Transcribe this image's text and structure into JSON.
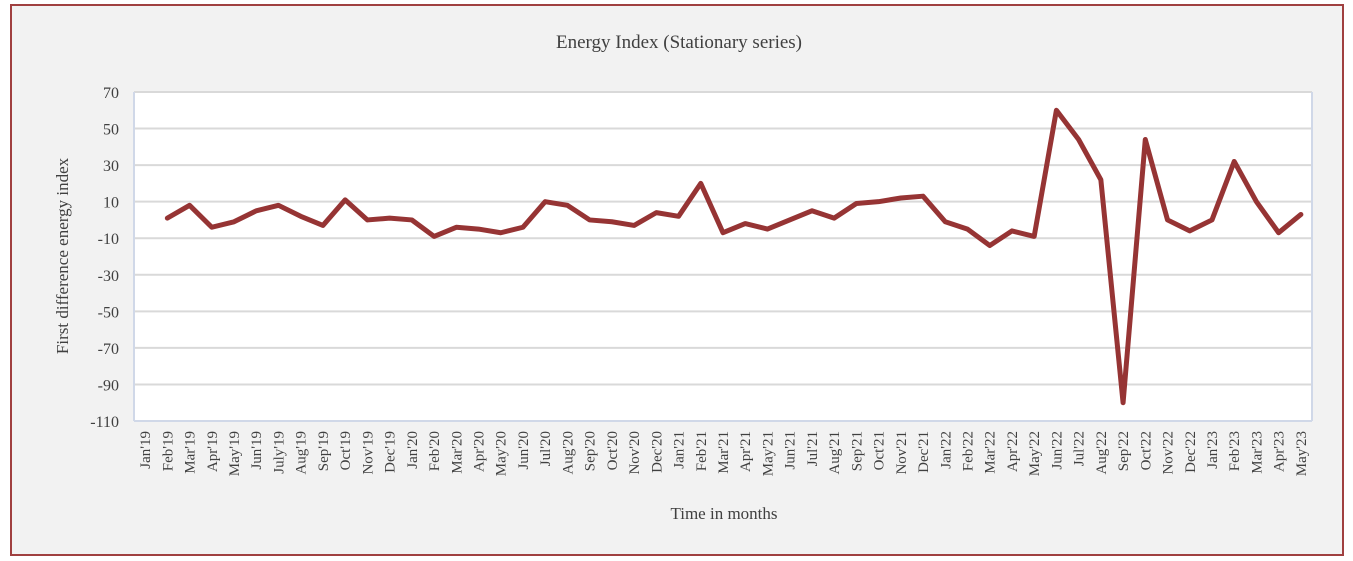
{
  "colors": {
    "line": "#963434",
    "frame_border": "#a04040",
    "plot_background": "#ffffff",
    "chart_background": "#f2f2f2",
    "gridline": "#d9d9d9",
    "axis_line": "#d0d8e8"
  },
  "chart_data": {
    "type": "line",
    "title": "Energy Index (Stationary series)",
    "xlabel": "Time in months",
    "ylabel": "First difference energy index",
    "ylim": [
      -110,
      70
    ],
    "yticks": [
      70,
      50,
      30,
      10,
      -10,
      -30,
      -50,
      -70,
      -90,
      -110
    ],
    "grid": true,
    "legend": "none",
    "categories": [
      "Jan'19",
      "Feb'19",
      "Mar'19",
      "Apr'19",
      "May'19",
      "Jun'19",
      "July'19",
      "Aug'19",
      "Sep'19",
      "Oct'19",
      "Nov'19",
      "Dec'19",
      "Jan'20",
      "Feb'20",
      "Mar'20",
      "Apr'20",
      "May'20",
      "Jun'20",
      "Jul'20",
      "Aug'20",
      "Sep'20",
      "Oct'20",
      "Nov'20",
      "Dec'20",
      "Jan'21",
      "Feb'21",
      "Mar'21",
      "Apr'21",
      "May'21",
      "Jun'21",
      "Jul'21",
      "Aug'21",
      "Sep'21",
      "Oct'21",
      "Nov'21",
      "Dec'21",
      "Jan'22",
      "Feb'22",
      "Mar'22",
      "Apr'22",
      "May'22",
      "Jun'22",
      "Jul'22",
      "Aug'22",
      "Sep'22",
      "Oct'22",
      "Nov'22",
      "Dec'22",
      "Jan'23",
      "Feb'23",
      "Mar'23",
      "Apr'23",
      "May'23"
    ],
    "series": [
      {
        "values": [
          null,
          1,
          8,
          -4,
          -1,
          5,
          8,
          2,
          -3,
          11,
          0,
          1,
          0,
          -9,
          -4,
          -5,
          -7,
          -4,
          10,
          8,
          0,
          -1,
          -3,
          4,
          2,
          20,
          -7,
          -2,
          -5,
          0,
          5,
          1,
          9,
          10,
          12,
          13,
          -1,
          -5,
          -14,
          -6,
          -9,
          60,
          44,
          22,
          -100,
          44,
          0,
          -6,
          0,
          32,
          10,
          -7,
          3
        ]
      }
    ]
  }
}
